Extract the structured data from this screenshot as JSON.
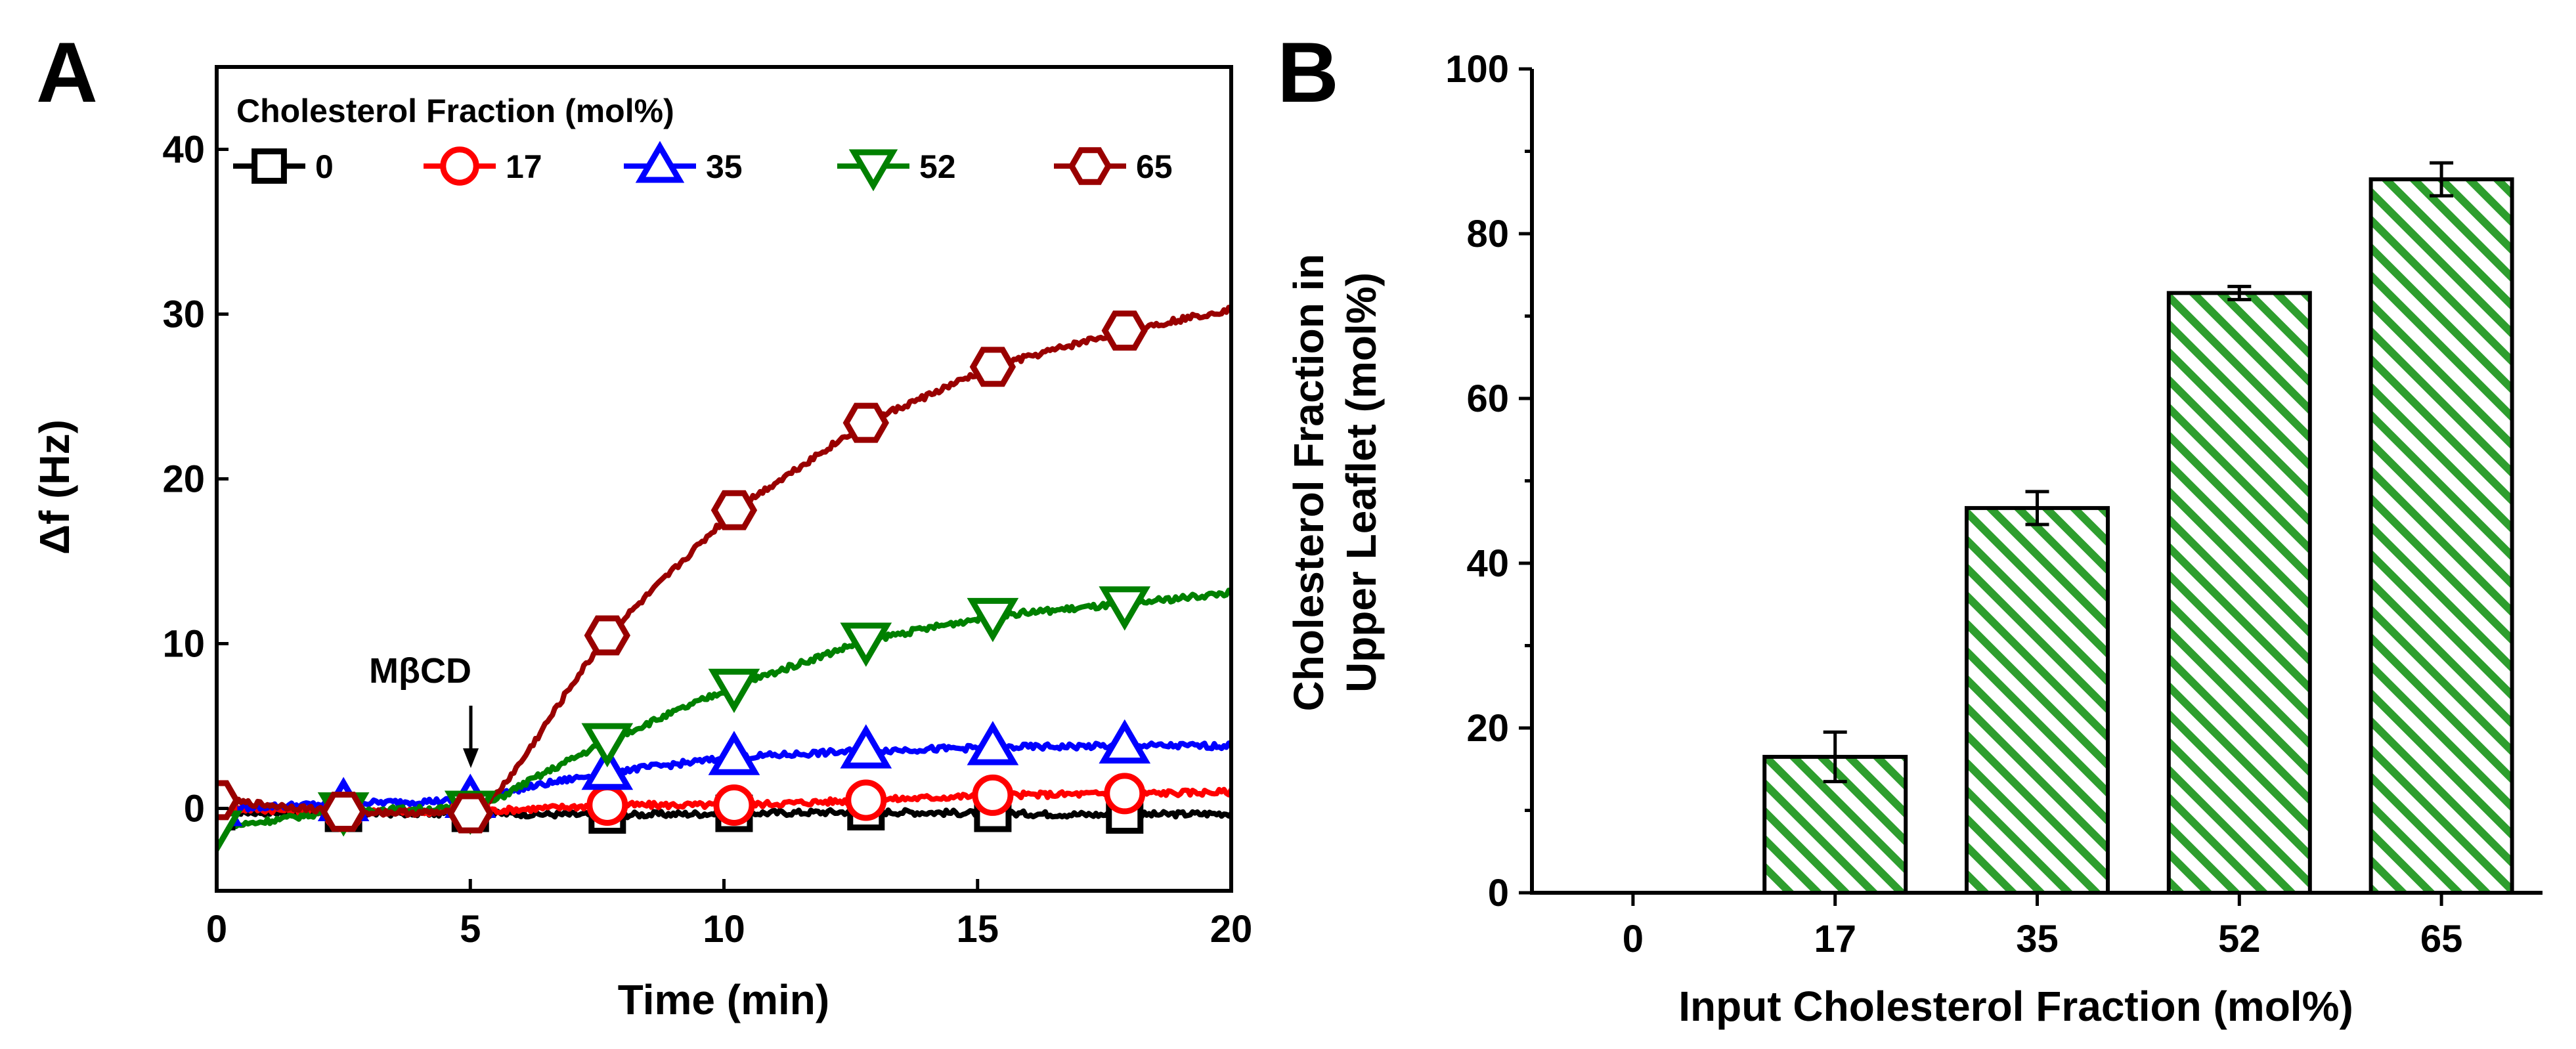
{
  "chart_data": [
    {
      "panel": "A",
      "type": "line",
      "xlabel": "Time (min)",
      "ylabel": "Δf (Hz)",
      "xlim": [
        0,
        20
      ],
      "ylim": [
        -5,
        45
      ],
      "xticks": [
        0,
        5,
        10,
        15,
        20
      ],
      "yticks": [
        0,
        10,
        20,
        30,
        40
      ],
      "legend": {
        "title": "Cholesterol Fraction (mol%)",
        "placement": "top"
      },
      "annotation": {
        "text": "MβCD",
        "x": 5,
        "y": 2
      },
      "series": [
        {
          "name": "0",
          "color": "#000000",
          "marker": "square",
          "x": [
            0,
            2.5,
            5,
            7.7,
            10.2,
            12.8,
            15.3,
            17.9,
            20
          ],
          "y": [
            -0.2,
            -0.3,
            -0.3,
            -0.4,
            -0.3,
            -0.2,
            -0.3,
            -0.4,
            -0.3
          ]
        },
        {
          "name": "17",
          "color": "#ff0000",
          "marker": "circle",
          "x": [
            0,
            2.5,
            5,
            7.7,
            10.2,
            12.8,
            15.3,
            17.9,
            20
          ],
          "y": [
            0,
            -0.2,
            -0.2,
            0.2,
            0.2,
            0.5,
            0.8,
            0.9,
            1.0
          ]
        },
        {
          "name": "35",
          "color": "#0000ff",
          "marker": "triangle-up",
          "x": [
            0,
            2.5,
            5,
            5.5,
            6,
            7.7,
            10.2,
            12.8,
            15.3,
            17.9,
            20
          ],
          "y": [
            0,
            0.3,
            0.5,
            0.8,
            1.2,
            2.2,
            3.1,
            3.5,
            3.7,
            3.8,
            3.8
          ]
        },
        {
          "name": "52",
          "color": "#008000",
          "marker": "triangle-down",
          "x": [
            0,
            2.5,
            5,
            5.5,
            6,
            7.7,
            10.2,
            12.8,
            15.3,
            17.9,
            20
          ],
          "y": [
            -1.2,
            -0.1,
            0,
            0.5,
            1.4,
            4.1,
            7.4,
            10.2,
            11.7,
            12.4,
            13.1
          ]
        },
        {
          "name": "65",
          "color": "#990000",
          "marker": "hexagon",
          "x": [
            0,
            2.5,
            5,
            5.5,
            6,
            7,
            7.7,
            10.2,
            12.8,
            15.3,
            17.9,
            20
          ],
          "y": [
            0.5,
            -0.2,
            -0.3,
            0.8,
            2.8,
            7.5,
            10.5,
            18.1,
            23.4,
            26.8,
            29.0,
            30.3
          ]
        }
      ]
    },
    {
      "panel": "B",
      "type": "bar",
      "xlabel": "Input Cholesterol Fraction (mol%)",
      "ylabel": "Cholesterol Fraction in Upper Leaflet (mol%)",
      "ylabel_lines": [
        "Cholesterol Fraction in",
        "Upper Leaflet (mol%)"
      ],
      "categories": [
        "0",
        "17",
        "35",
        "52",
        "65"
      ],
      "values": [
        0,
        16.5,
        46.7,
        72.8,
        86.6
      ],
      "errors": [
        0,
        3.0,
        2.0,
        0.8,
        2.0
      ],
      "ylim": [
        0,
        100
      ],
      "yticks": [
        0,
        20,
        40,
        60,
        80,
        100
      ],
      "bar_color": "#2e9e2e",
      "fill": "diagonal-hatch"
    }
  ]
}
